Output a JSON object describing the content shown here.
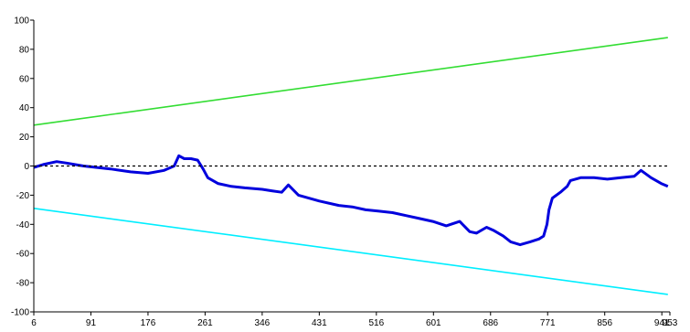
{
  "chart_data": {
    "type": "line",
    "title": "",
    "xlabel": "",
    "ylabel": "",
    "xlim": [
      6,
      953
    ],
    "ylim": [
      -100,
      100
    ],
    "x_ticks": [
      6,
      91,
      176,
      261,
      346,
      431,
      516,
      601,
      686,
      771,
      856,
      941,
      953
    ],
    "y_ticks": [
      100,
      80,
      60,
      40,
      20,
      0,
      -20,
      -40,
      -60,
      -80,
      -100
    ],
    "grid": false,
    "legend": "none",
    "series": [
      {
        "color": "#0000dd",
        "style": "solid",
        "x": [
          6,
          20,
          40,
          55,
          80,
          120,
          150,
          176,
          200,
          215,
          222,
          230,
          240,
          250,
          258,
          265,
          280,
          300,
          320,
          346,
          360,
          375,
          385,
          400,
          431,
          460,
          480,
          500,
          520,
          540,
          560,
          580,
          600,
          620,
          640,
          655,
          665,
          680,
          690,
          705,
          716,
          730,
          745,
          758,
          765,
          770,
          773,
          778,
          790,
          800,
          805,
          820,
          840,
          860,
          880,
          900,
          910,
          925,
          940,
          950
        ],
        "y": [
          -1,
          1,
          3,
          2,
          0,
          -2,
          -4,
          -5,
          -3,
          0,
          7,
          5,
          5,
          4,
          -2,
          -8,
          -12,
          -14,
          -15,
          -16,
          -17,
          -18,
          -13,
          -20,
          -24,
          -27,
          -28,
          -30,
          -31,
          -32,
          -34,
          -36,
          -38,
          -41,
          -38,
          -45,
          -46,
          -42,
          -44,
          -48,
          -52,
          -54,
          -52,
          -50,
          -48,
          -40,
          -30,
          -22,
          -18,
          -14,
          -10,
          -8,
          -8,
          -9,
          -8,
          -7,
          -3,
          -8,
          -12,
          -14
        ]
      },
      {
        "color": "#33dd33",
        "style": "solid",
        "x": [
          6,
          950
        ],
        "y": [
          28,
          88
        ]
      },
      {
        "color": "#00eeff",
        "style": "solid",
        "x": [
          6,
          950
        ],
        "y": [
          -29,
          -88
        ]
      },
      {
        "color": "#000000",
        "style": "dashed",
        "x": [
          6,
          953
        ],
        "y": [
          0,
          0
        ]
      }
    ]
  }
}
